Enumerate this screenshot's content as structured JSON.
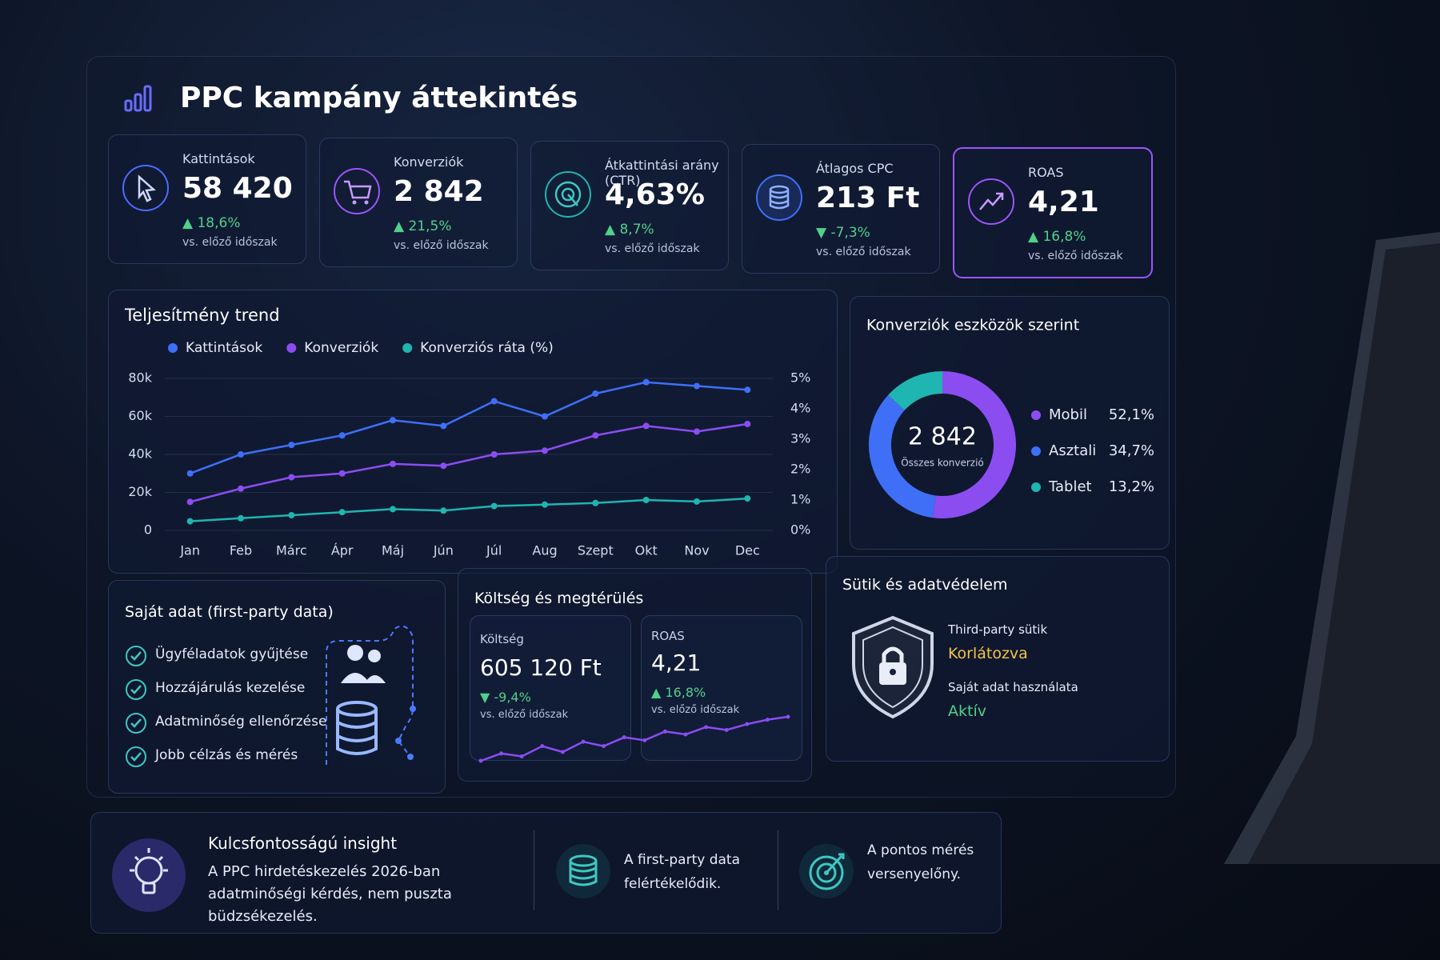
{
  "header": {
    "title": "PPC kampány áttekintés"
  },
  "kpis": [
    {
      "label": "Kattintások",
      "value": "58 420",
      "change": "▲ 18,6%",
      "note": "vs. előző időszak"
    },
    {
      "label": "Konverziók",
      "value": "2 842",
      "change": "▲ 21,5%",
      "note": "vs. előző időszak"
    },
    {
      "label": "Átkattintási arány (CTR)",
      "value": "4,63%",
      "change": "▲ 8,7%",
      "note": "vs. előző időszak"
    },
    {
      "label": "Átlagos CPC",
      "value": "213 Ft",
      "change": "▼ -7,3%",
      "note": "vs. előző időszak"
    },
    {
      "label": "ROAS",
      "value": "4,21",
      "change": "▲ 16,8%",
      "note": "vs. előző időszak"
    }
  ],
  "trend": {
    "type": "line",
    "title": "Teljesítmény trend",
    "categories": [
      "Jan",
      "Feb",
      "Márc",
      "Ápr",
      "Máj",
      "Jún",
      "Júl",
      "Aug",
      "Szept",
      "Okt",
      "Nov",
      "Dec"
    ],
    "series": [
      {
        "name": "Kattintások",
        "color": "#3f6ff7",
        "values": [
          30000,
          40000,
          45000,
          50000,
          58000,
          55000,
          68000,
          60000,
          72000,
          78000,
          76000,
          74000
        ]
      },
      {
        "name": "Konverziók",
        "color": "#8b4df0",
        "values": [
          15000,
          22000,
          28000,
          30000,
          35000,
          34000,
          40000,
          42000,
          50000,
          55000,
          52000,
          56000
        ]
      },
      {
        "name": "Konverziós ráta (%)",
        "color": "#1fb5b0",
        "axis": "y2",
        "values": [
          0.3,
          0.4,
          0.5,
          0.6,
          0.7,
          0.65,
          0.8,
          0.85,
          0.9,
          1.0,
          0.95,
          1.05
        ]
      }
    ],
    "ylim": [
      0,
      80000
    ],
    "yticks": [
      0,
      {
        "value": 20000,
        "label": "20k"
      },
      {
        "value": 40000,
        "label": "40k"
      },
      {
        "value": 60000,
        "label": "60k"
      },
      {
        "value": 80000,
        "label": "80k"
      }
    ],
    "y2lim": [
      0,
      5
    ],
    "y2ticks": [
      {
        "value": 0,
        "label": "0%"
      },
      {
        "value": 1,
        "label": "1%"
      },
      {
        "value": 2,
        "label": "2%"
      },
      {
        "value": 3,
        "label": "3%"
      },
      {
        "value": 4,
        "label": "4%"
      },
      {
        "value": 5,
        "label": "5%"
      }
    ],
    "grid": true
  },
  "devices": {
    "type": "pie",
    "title": "Konverziók eszközök szerint",
    "center_value": "2 842",
    "center_label": "Összes konverzió",
    "categories": [
      "Mobil",
      "Asztali",
      "Tablet"
    ],
    "values": [
      52.1,
      34.7,
      13.2
    ],
    "value_labels": [
      "52,1%",
      "34,7%",
      "13,2%"
    ],
    "colors": [
      "#8b4df0",
      "#3f6ff7",
      "#1fb5b0"
    ]
  },
  "first_party": {
    "title": "Saját adat (first-party data)",
    "items": [
      "Ügyféladatok gyűjtése",
      "Hozzájárulás kezelése",
      "Adatminőség ellenőrzése",
      "Jobb célzás és mérés"
    ]
  },
  "cost": {
    "title": "Költség és megtérülés",
    "cost_label": "Költség",
    "cost_value": "605 120 Ft",
    "cost_change": "▼ -9,4%",
    "cost_note": "vs. előző időszak",
    "roas_label": "ROAS",
    "roas_value": "4,21",
    "roas_change": "▲ 16,8%",
    "roas_note": "vs. előző időszak",
    "sparkline": {
      "type": "line",
      "color": "#8b4df0",
      "values": [
        2,
        3,
        2.6,
        4,
        3.2,
        4.6,
        4,
        5.2,
        4.8,
        6,
        5.6,
        6.6,
        6.2,
        7,
        7.6,
        8
      ]
    }
  },
  "cookies": {
    "title": "Sütik és adatvédelem",
    "third_party_label": "Third-party sütik",
    "third_party_status": "Korlátozva",
    "own_label": "Saját adat használata",
    "own_status": "Aktív"
  },
  "insight": {
    "title": "Kulcsfontosságú insight",
    "text": "A PPC hirdetéskezelés 2026-ban adatminőségi kérdés, nem puszta büdzsékezelés.",
    "items": [
      "A first-party data felértékelődik.",
      "A pontos mérés versenyelőny."
    ]
  }
}
